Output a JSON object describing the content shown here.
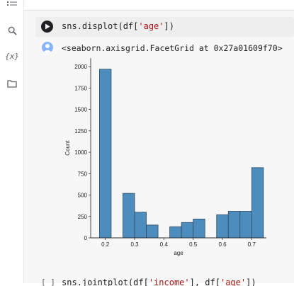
{
  "sidebar": {
    "icons": [
      "menu-icon",
      "search-icon",
      "variables-icon",
      "folder-icon"
    ],
    "variables_label": "{x}"
  },
  "cell1": {
    "code_prefix": "sns.displot(df[",
    "code_string": "'age'",
    "code_suffix": "])",
    "output": "<seaborn.axisgrid.FacetGrid at 0x27a01609f70>"
  },
  "cell2": {
    "bracket": "[ ]",
    "code_prefix": "sns.jointplot(df[",
    "code_string1": "'income'",
    "code_mid": "], df[",
    "code_string2": "'age'",
    "code_suffix": "])"
  },
  "chart_data": {
    "type": "bar",
    "xlabel": "age",
    "ylabel": "Count",
    "xlim": [
      0.15,
      0.75
    ],
    "ylim": [
      0,
      2100
    ],
    "xticks": [
      "0.2",
      "0.3",
      "0.4",
      "0.5",
      "0.6",
      "0.7"
    ],
    "yticks": [
      "0",
      "250",
      "500",
      "750",
      "1000",
      "1250",
      "1500",
      "1750",
      "2000"
    ],
    "bins": [
      {
        "x0": 0.18,
        "x1": 0.22,
        "count": 1970
      },
      {
        "x0": 0.22,
        "x1": 0.26,
        "count": 0
      },
      {
        "x0": 0.26,
        "x1": 0.3,
        "count": 520
      },
      {
        "x0": 0.3,
        "x1": 0.34,
        "count": 300
      },
      {
        "x0": 0.34,
        "x1": 0.38,
        "count": 150
      },
      {
        "x0": 0.38,
        "x1": 0.42,
        "count": 0
      },
      {
        "x0": 0.42,
        "x1": 0.46,
        "count": 130
      },
      {
        "x0": 0.46,
        "x1": 0.5,
        "count": 180
      },
      {
        "x0": 0.5,
        "x1": 0.54,
        "count": 220
      },
      {
        "x0": 0.54,
        "x1": 0.58,
        "count": 0
      },
      {
        "x0": 0.58,
        "x1": 0.62,
        "count": 270
      },
      {
        "x0": 0.62,
        "x1": 0.66,
        "count": 310
      },
      {
        "x0": 0.66,
        "x1": 0.7,
        "count": 310
      },
      {
        "x0": 0.7,
        "x1": 0.74,
        "count": 820
      }
    ],
    "bar_color": "#4c8dbd",
    "bar_edge": "#2c4a66",
    "grid": false
  }
}
